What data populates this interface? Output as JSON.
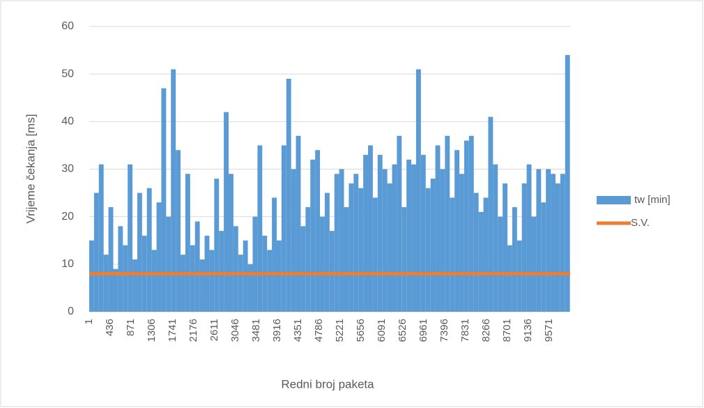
{
  "chart_data": {
    "type": "bar",
    "xlabel": "Redni broj paketa",
    "ylabel": "Vrijeme  čekanja [ms]",
    "xlim": [
      1,
      10006
    ],
    "xticks": [
      1,
      436,
      871,
      1306,
      1741,
      2176,
      2611,
      3046,
      3481,
      3916,
      4351,
      4786,
      5221,
      5656,
      6091,
      6526,
      6961,
      7396,
      7831,
      8266,
      8701,
      9136,
      9571
    ],
    "ylim": [
      0,
      60
    ],
    "yticks": [
      0,
      10,
      20,
      30,
      40,
      50,
      60
    ],
    "grid": true,
    "legend": "right",
    "x": [
      1,
      101,
      201,
      301,
      401,
      501,
      601,
      701,
      801,
      901,
      1001,
      1101,
      1201,
      1301,
      1401,
      1501,
      1601,
      1701,
      1801,
      1901,
      2001,
      2101,
      2201,
      2301,
      2401,
      2501,
      2601,
      2701,
      2801,
      2901,
      3001,
      3101,
      3201,
      3301,
      3401,
      3501,
      3601,
      3701,
      3801,
      3901,
      4001,
      4101,
      4201,
      4301,
      4401,
      4501,
      4601,
      4701,
      4801,
      4901,
      5001,
      5101,
      5201,
      5301,
      5401,
      5501,
      5601,
      5701,
      5801,
      5901,
      6001,
      6101,
      6201,
      6301,
      6401,
      6501,
      6601,
      6701,
      6801,
      6901,
      7001,
      7101,
      7201,
      7301,
      7401,
      7501,
      7601,
      7701,
      7801,
      7901,
      8001,
      8101,
      8201,
      8301,
      8401,
      8501,
      8601,
      8701,
      8801,
      8901,
      9001,
      9101,
      9201,
      9301,
      9401,
      9501,
      9601,
      9701,
      9801,
      9901
    ],
    "series": [
      {
        "name": "tw [min]",
        "color": "#5b9bd5",
        "kind": "bar",
        "values": [
          15,
          25,
          31,
          12,
          22,
          9,
          18,
          14,
          31,
          11,
          25,
          16,
          26,
          13,
          23,
          47,
          20,
          51,
          34,
          12,
          29,
          14,
          19,
          11,
          16,
          13,
          28,
          17,
          42,
          29,
          18,
          12,
          15,
          10,
          20,
          35,
          16,
          13,
          24,
          15,
          35,
          49,
          30,
          37,
          18,
          22,
          32,
          34,
          20,
          25,
          17,
          29,
          30,
          22,
          27,
          29,
          26,
          33,
          35,
          24,
          33,
          30,
          27,
          31,
          37,
          22,
          32,
          31,
          51,
          33,
          26,
          28,
          35,
          30,
          37,
          24,
          34,
          29,
          36,
          37,
          25,
          21,
          24,
          41,
          31,
          20,
          27,
          14,
          22,
          15,
          27,
          31,
          20,
          30,
          23,
          30,
          29,
          27,
          29,
          54
        ]
      },
      {
        "name": "S.V.",
        "color": "#ed7d31",
        "kind": "line",
        "x": [
          1,
          10006
        ],
        "values": [
          8,
          8
        ]
      }
    ]
  }
}
